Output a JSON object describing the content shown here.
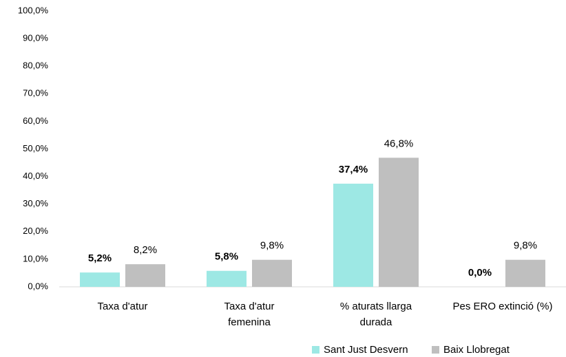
{
  "chart_data": {
    "type": "bar",
    "categories": [
      "Taxa d'atur",
      "Taxa d'atur femenina",
      "% aturats llarga durada",
      "Pes ERO extinció (%)"
    ],
    "series": [
      {
        "name": "Sant Just Desvern",
        "color": "#9de8e4",
        "values": [
          5.2,
          5.8,
          37.4,
          0.0
        ],
        "value_labels": [
          "5,2%",
          "5,8%",
          "37,4%",
          "0,0%"
        ]
      },
      {
        "name": "Baix Llobregat",
        "color": "#bfbfbf",
        "values": [
          8.2,
          9.8,
          46.8,
          9.8
        ],
        "value_labels": [
          "8,2%",
          "9,8%",
          "46,8%",
          "9,8%"
        ]
      }
    ],
    "ylim": [
      0,
      100
    ],
    "yticks": [
      {
        "value": 0,
        "label": "0,0%"
      },
      {
        "value": 10,
        "label": "10,0%"
      },
      {
        "value": 20,
        "label": "20,0%"
      },
      {
        "value": 30,
        "label": "30,0%"
      },
      {
        "value": 40,
        "label": "40,0%"
      },
      {
        "value": 50,
        "label": "50,0%"
      },
      {
        "value": 60,
        "label": "60,0%"
      },
      {
        "value": 70,
        "label": "70,0%"
      },
      {
        "value": 80,
        "label": "80,0%"
      },
      {
        "value": 90,
        "label": "90,0%"
      },
      {
        "value": 100,
        "label": "100,0%"
      }
    ],
    "legend": "bottom-right"
  }
}
